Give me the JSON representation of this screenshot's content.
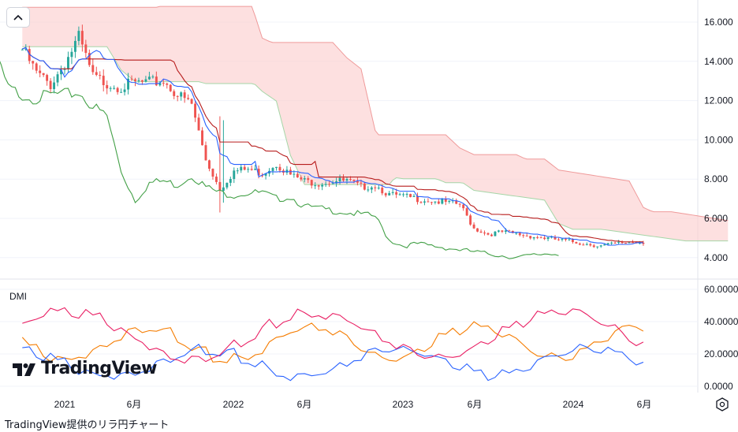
{
  "caption": "TradingView提供のリラ円チャート",
  "logo_text": "TradingView",
  "indicator_label": "DMI",
  "icons": {
    "collapse": "chevron-up-icon",
    "settings": "gear-icon",
    "logo": "tradingview-logo-icon"
  },
  "colors": {
    "up": "#26a69a",
    "down": "#ef5350",
    "tenkan": "#2962ff",
    "kijun": "#b71c1c",
    "chikou": "#43a047",
    "cloud_fill": "#fccfd0",
    "span_a": "#a5d6a7",
    "span_b": "#ef9a9a",
    "di_plus": "#2962ff",
    "di_minus": "#f57c00",
    "adx": "#e91e63"
  },
  "chart_data": [
    {
      "type": "candlestick",
      "x_ticks": [
        "2021",
        "6月",
        "2022",
        "6月",
        "2023",
        "6月",
        "2024",
        "6月"
      ],
      "y_ticks": [
        "4.000",
        "6.000",
        "8.000",
        "10.000",
        "12.000",
        "14.000",
        "16.000"
      ],
      "ylim": [
        3.2,
        17.2
      ],
      "close_path": [
        [
          "2020-10",
          14.6
        ],
        [
          "2020-11",
          13.4
        ],
        [
          "2020-12",
          12.8
        ],
        [
          "2021-01",
          13.9
        ],
        [
          "2021-02",
          15.2
        ],
        [
          "2021-03",
          13.2
        ],
        [
          "2021-04",
          12.9
        ],
        [
          "2021-05",
          12.7
        ],
        [
          "2021-06",
          12.9
        ],
        [
          "2021-07",
          12.9
        ],
        [
          "2021-08",
          13.0
        ],
        [
          "2021-09",
          12.3
        ],
        [
          "2021-10",
          11.8
        ],
        [
          "2021-11",
          9.0
        ],
        [
          "2021-12",
          7.5
        ],
        [
          "2022-01",
          8.4
        ],
        [
          "2022-02",
          8.5
        ],
        [
          "2022-03",
          8.3
        ],
        [
          "2022-04",
          8.8
        ],
        [
          "2022-05",
          8.2
        ],
        [
          "2022-06",
          7.9
        ],
        [
          "2022-07",
          7.8
        ],
        [
          "2022-08",
          7.9
        ],
        [
          "2022-09",
          7.9
        ],
        [
          "2022-10",
          7.6
        ],
        [
          "2022-11",
          7.7
        ],
        [
          "2022-12",
          7.2
        ],
        [
          "2023-01",
          7.1
        ],
        [
          "2023-02",
          7.0
        ],
        [
          "2023-03",
          6.9
        ],
        [
          "2023-04",
          6.8
        ],
        [
          "2023-05",
          6.7
        ],
        [
          "2023-06",
          5.5
        ],
        [
          "2023-07",
          5.2
        ],
        [
          "2023-08",
          5.3
        ],
        [
          "2023-09",
          5.2
        ],
        [
          "2023-10",
          5.1
        ],
        [
          "2023-11",
          5.0
        ],
        [
          "2023-12",
          4.9
        ],
        [
          "2024-01",
          4.8
        ],
        [
          "2024-02",
          4.7
        ],
        [
          "2024-03",
          4.6
        ],
        [
          "2024-04",
          4.7
        ],
        [
          "2024-05",
          4.8
        ],
        [
          "2024-06",
          4.8
        ]
      ]
    },
    {
      "type": "line",
      "title": "DMI",
      "y_ticks": [
        "0.0000",
        "20.0000",
        "40.0000",
        "60.0000"
      ],
      "ylim": [
        0,
        62
      ]
    }
  ]
}
